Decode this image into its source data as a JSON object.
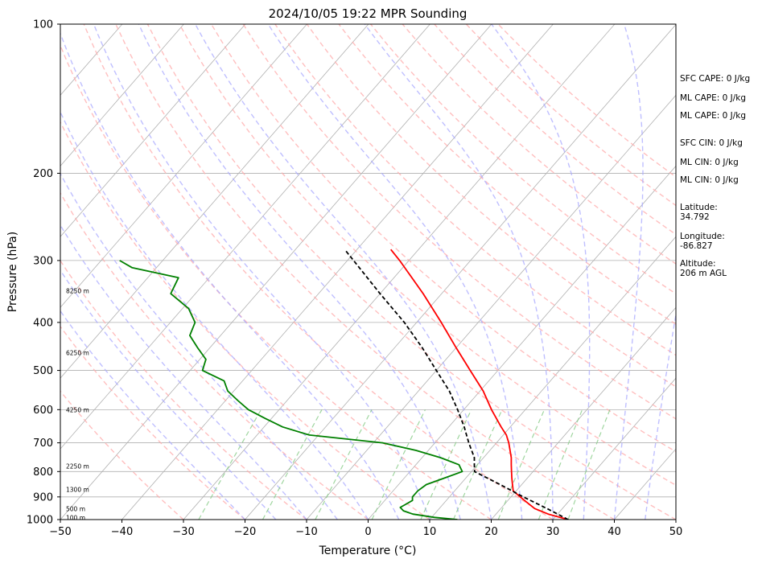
{
  "chart_data": {
    "type": "line",
    "title": "2024/10/05 19:22 MPR Sounding",
    "xlabel": "Temperature (°C)",
    "ylabel": "Pressure (hPa)",
    "xlim": [
      -50,
      50
    ],
    "ylim": [
      1000,
      100
    ],
    "y_scale": "log",
    "x_ticks": [
      "−50",
      "−40",
      "−30",
      "−20",
      "−10",
      "0",
      "10",
      "20",
      "30",
      "40",
      "50"
    ],
    "y_ticks": [
      "100",
      "200",
      "300",
      "400",
      "500",
      "600",
      "700",
      "800",
      "900",
      "1000"
    ],
    "grid": true,
    "series": [
      {
        "role": "temperature",
        "color": "#ff0000",
        "points": [
          {
            "p": 1000,
            "t": 32.5
          },
          {
            "p": 975,
            "t": 28.5
          },
          {
            "p": 950,
            "t": 25.5
          },
          {
            "p": 925,
            "t": 23.5
          },
          {
            "p": 900,
            "t": 21.5
          },
          {
            "p": 875,
            "t": 19.5
          },
          {
            "p": 850,
            "t": 18.5
          },
          {
            "p": 825,
            "t": 17.5
          },
          {
            "p": 800,
            "t": 16.5
          },
          {
            "p": 775,
            "t": 15.5
          },
          {
            "p": 750,
            "t": 14.5
          },
          {
            "p": 700,
            "t": 12.0
          },
          {
            "p": 675,
            "t": 10.5
          },
          {
            "p": 650,
            "t": 8.5
          },
          {
            "p": 600,
            "t": 4.5
          },
          {
            "p": 550,
            "t": 0.5
          },
          {
            "p": 500,
            "t": -4.5
          },
          {
            "p": 450,
            "t": -10.0
          },
          {
            "p": 400,
            "t": -16.0
          },
          {
            "p": 350,
            "t": -23.0
          },
          {
            "p": 300,
            "t": -31.5
          },
          {
            "p": 285,
            "t": -34.5
          }
        ]
      },
      {
        "role": "dewpoint",
        "color": "#008000",
        "points": [
          {
            "p": 1000,
            "t": 14.5
          },
          {
            "p": 990,
            "t": 10.5
          },
          {
            "p": 975,
            "t": 6.5
          },
          {
            "p": 960,
            "t": 4.5
          },
          {
            "p": 945,
            "t": 3.5
          },
          {
            "p": 930,
            "t": 4.0
          },
          {
            "p": 915,
            "t": 4.5
          },
          {
            "p": 900,
            "t": 4.0
          },
          {
            "p": 875,
            "t": 4.0
          },
          {
            "p": 850,
            "t": 4.5
          },
          {
            "p": 825,
            "t": 6.5
          },
          {
            "p": 800,
            "t": 8.5
          },
          {
            "p": 775,
            "t": 7.0
          },
          {
            "p": 750,
            "t": 3.0
          },
          {
            "p": 725,
            "t": -2.0
          },
          {
            "p": 700,
            "t": -8.5
          },
          {
            "p": 675,
            "t": -21.5
          },
          {
            "p": 650,
            "t": -27.0
          },
          {
            "p": 625,
            "t": -31.0
          },
          {
            "p": 600,
            "t": -35.0
          },
          {
            "p": 575,
            "t": -38.0
          },
          {
            "p": 550,
            "t": -41.0
          },
          {
            "p": 525,
            "t": -43.0
          },
          {
            "p": 500,
            "t": -48.0
          },
          {
            "p": 475,
            "t": -49.0
          },
          {
            "p": 450,
            "t": -52.0
          },
          {
            "p": 425,
            "t": -55.0
          },
          {
            "p": 400,
            "t": -56.0
          },
          {
            "p": 375,
            "t": -59.0
          },
          {
            "p": 350,
            "t": -64.0
          },
          {
            "p": 325,
            "t": -65.0
          },
          {
            "p": 310,
            "t": -74.0
          },
          {
            "p": 300,
            "t": -77.0
          }
        ]
      },
      {
        "role": "parcel-profile",
        "color": "#000000",
        "points": [
          {
            "p": 1000,
            "t": 32.5
          },
          {
            "p": 950,
            "t": 27.5
          },
          {
            "p": 900,
            "t": 22.0
          },
          {
            "p": 850,
            "t": 16.5
          },
          {
            "p": 800,
            "t": 10.5
          },
          {
            "p": 775,
            "t": 9.5
          },
          {
            "p": 750,
            "t": 8.5
          },
          {
            "p": 700,
            "t": 5.5
          },
          {
            "p": 650,
            "t": 2.5
          },
          {
            "p": 600,
            "t": -1.0
          },
          {
            "p": 550,
            "t": -5.0
          },
          {
            "p": 500,
            "t": -10.0
          },
          {
            "p": 450,
            "t": -15.5
          },
          {
            "p": 400,
            "t": -22.0
          },
          {
            "p": 350,
            "t": -30.0
          },
          {
            "p": 300,
            "t": -39.0
          },
          {
            "p": 285,
            "t": -42.0
          }
        ]
      }
    ],
    "height_labels": [
      {
        "label": "100 m",
        "p": 990
      },
      {
        "label": "500 m",
        "p": 950
      },
      {
        "label": "1300 m",
        "p": 870
      },
      {
        "label": "2250 m",
        "p": 780
      },
      {
        "label": "4250 m",
        "p": 600
      },
      {
        "label": "6250 m",
        "p": 460
      },
      {
        "label": "8250 m",
        "p": 345
      }
    ],
    "reference_lines": {
      "isotherm_color": "#b0b0b0",
      "dry_adiabat_color": "#ffaaaa",
      "moist_adiabat_color": "#aaaaff",
      "mixing_ratio_color": "#88cc88"
    }
  },
  "sidebar": {
    "items": [
      "SFC CAPE: 0 J/kg",
      "ML CAPE: 0 J/kg",
      "ML CAPE: 0 J/kg",
      "SFC CIN: 0 J/kg",
      "ML CIN: 0 J/kg",
      "ML CIN: 0 J/kg",
      "Latitude:\n34.792",
      "Longitude:\n-86.827",
      "Altitude:\n206 m AGL"
    ]
  }
}
